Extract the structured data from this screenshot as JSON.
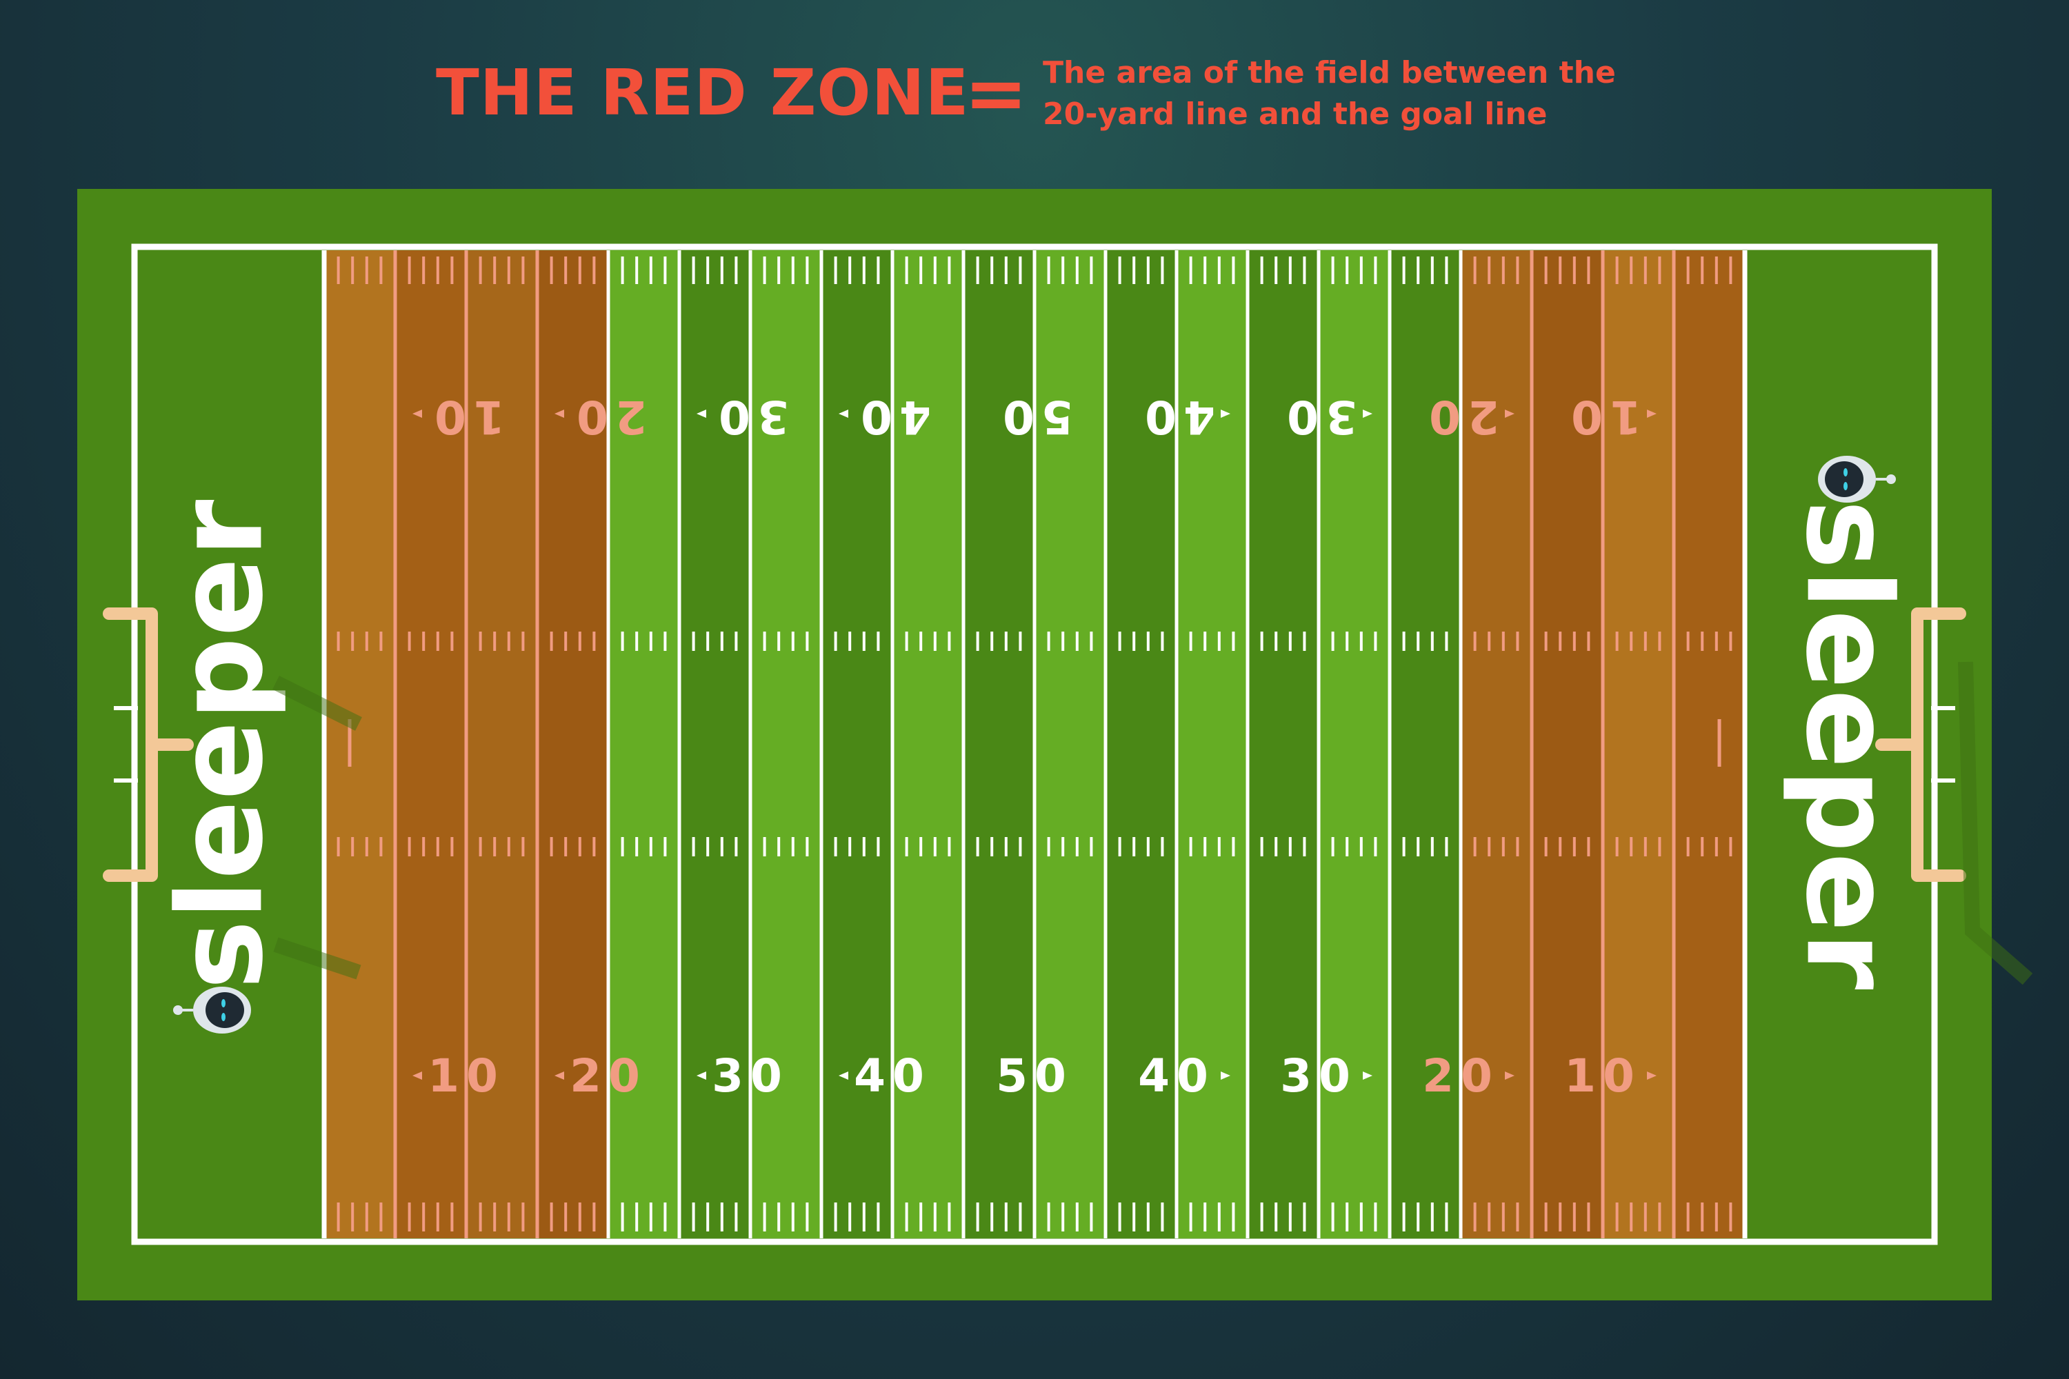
{
  "header": {
    "title": "THE RED ZONE",
    "equals": "=",
    "definition_line1": "The area of the field between the",
    "definition_line2": "20-yard line and the goal line"
  },
  "field": {
    "top_numbers": [
      "10",
      "20",
      "30",
      "40",
      "50",
      "40",
      "30",
      "20",
      "10"
    ],
    "bottom_numbers": [
      "10",
      "20",
      "30",
      "40",
      "50",
      "40",
      "30",
      "20",
      "10"
    ],
    "endzone_logo_text": "sleeper"
  },
  "colors": {
    "title": "#f2503a",
    "background": "#1b3b44",
    "field_dark": "#4a8816",
    "field_light": "#65ad24",
    "border_green": "#4a8816",
    "red_zone_dark": "#a46016",
    "red_zone_light": "#b2741f",
    "red_zone_lines": "#f19c82",
    "goalpost": "#f3c898",
    "white": "#ffffff"
  },
  "icons": [
    "sleeper-mascot-icon",
    "sleeper-mascot-icon"
  ]
}
